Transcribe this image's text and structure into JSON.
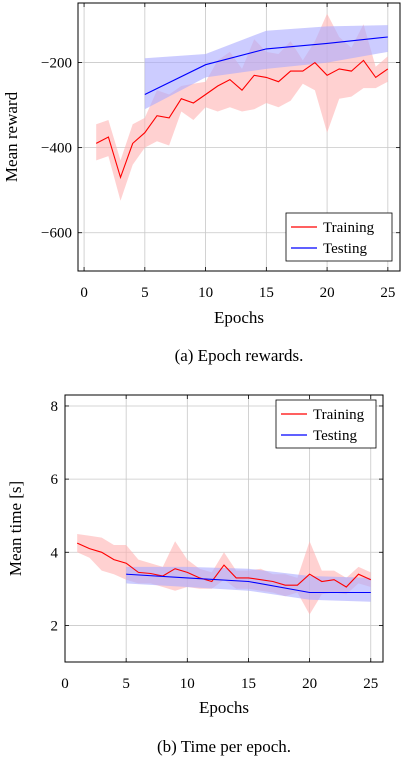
{
  "chart_data": [
    {
      "type": "line",
      "caption": "(a) Epoch rewards.",
      "xlabel": "Epochs",
      "ylabel": "Mean reward",
      "xlim": [
        -0.5,
        26
      ],
      "ylim": [
        -690,
        -60
      ],
      "xticks": [
        0,
        5,
        10,
        15,
        20,
        25
      ],
      "yticks": [
        -200,
        -400,
        -600
      ],
      "ytick_labels": [
        "−200",
        "−400",
        "−600"
      ],
      "grid": true,
      "legend_position": "lower-right",
      "series": [
        {
          "name": "Training",
          "color": "#ff0000",
          "band_color": "#ffb3b3",
          "x": [
            1,
            2,
            3,
            4,
            5,
            6,
            7,
            8,
            9,
            10,
            11,
            12,
            13,
            14,
            15,
            16,
            17,
            18,
            19,
            20,
            21,
            22,
            23,
            24,
            25
          ],
          "values": [
            -390,
            -375,
            -470,
            -390,
            -365,
            -325,
            -330,
            -285,
            -295,
            -275,
            -255,
            -240,
            -265,
            -230,
            -235,
            -245,
            -220,
            -220,
            -200,
            -230,
            -215,
            -220,
            -195,
            -235,
            -215
          ],
          "upper": [
            -345,
            -335,
            -430,
            -345,
            -330,
            -265,
            -275,
            -255,
            -250,
            -245,
            -195,
            -175,
            -215,
            -145,
            -175,
            -180,
            -150,
            -195,
            -150,
            -85,
            -140,
            -165,
            -110,
            -210,
            -185
          ],
          "lower": [
            -430,
            -420,
            -525,
            -440,
            -400,
            -385,
            -395,
            -315,
            -335,
            -305,
            -315,
            -305,
            -315,
            -310,
            -295,
            -305,
            -290,
            -250,
            -265,
            -365,
            -285,
            -280,
            -260,
            -260,
            -245
          ]
        },
        {
          "name": "Testing",
          "color": "#0000ff",
          "band_color": "#aaaaff",
          "x": [
            5,
            10,
            15,
            20,
            25
          ],
          "values": [
            -275,
            -205,
            -168,
            -155,
            -140
          ],
          "upper": [
            -190,
            -180,
            -125,
            -115,
            -112
          ],
          "lower": [
            -310,
            -235,
            -215,
            -200,
            -175
          ]
        }
      ]
    },
    {
      "type": "line",
      "caption": "(b) Time per epoch.",
      "xlabel": "Epochs",
      "ylabel": "Mean time [s]",
      "xlim": [
        0,
        26
      ],
      "ylim": [
        1,
        8.3
      ],
      "xticks": [
        0,
        5,
        10,
        15,
        20,
        25
      ],
      "yticks": [
        2,
        4,
        6,
        8
      ],
      "ytick_labels": [
        "2",
        "4",
        "6",
        "8"
      ],
      "grid": true,
      "legend_position": "top-right",
      "series": [
        {
          "name": "Training",
          "color": "#ff0000",
          "band_color": "#ffb3b3",
          "x": [
            1,
            2,
            3,
            4,
            5,
            6,
            7,
            8,
            9,
            10,
            11,
            12,
            13,
            14,
            15,
            16,
            17,
            18,
            19,
            20,
            21,
            22,
            23,
            24,
            25
          ],
          "values": [
            4.25,
            4.1,
            4.0,
            3.8,
            3.7,
            3.45,
            3.42,
            3.35,
            3.55,
            3.45,
            3.3,
            3.2,
            3.65,
            3.3,
            3.3,
            3.25,
            3.2,
            3.1,
            3.1,
            3.4,
            3.2,
            3.25,
            3.05,
            3.4,
            3.25
          ],
          "upper": [
            4.5,
            4.45,
            4.4,
            4.2,
            4.2,
            3.8,
            3.7,
            3.6,
            4.3,
            3.8,
            3.55,
            3.45,
            4.0,
            3.5,
            3.5,
            3.55,
            3.4,
            3.4,
            3.3,
            4.3,
            3.5,
            3.5,
            3.3,
            3.6,
            3.45
          ],
          "lower": [
            4.0,
            3.85,
            3.5,
            3.4,
            3.25,
            3.15,
            3.15,
            3.05,
            2.95,
            3.05,
            3.0,
            3.0,
            3.25,
            3.0,
            3.0,
            2.95,
            2.9,
            2.8,
            2.9,
            2.3,
            2.85,
            2.9,
            2.85,
            3.15,
            3.05
          ]
        },
        {
          "name": "Testing",
          "color": "#0000ff",
          "band_color": "#aaaaff",
          "x": [
            5,
            10,
            15,
            20,
            25
          ],
          "values": [
            3.4,
            3.3,
            3.2,
            2.9,
            2.9
          ],
          "upper": [
            3.6,
            3.6,
            3.55,
            3.35,
            3.3
          ],
          "lower": [
            3.15,
            3.05,
            2.95,
            2.7,
            2.65
          ]
        }
      ]
    }
  ]
}
